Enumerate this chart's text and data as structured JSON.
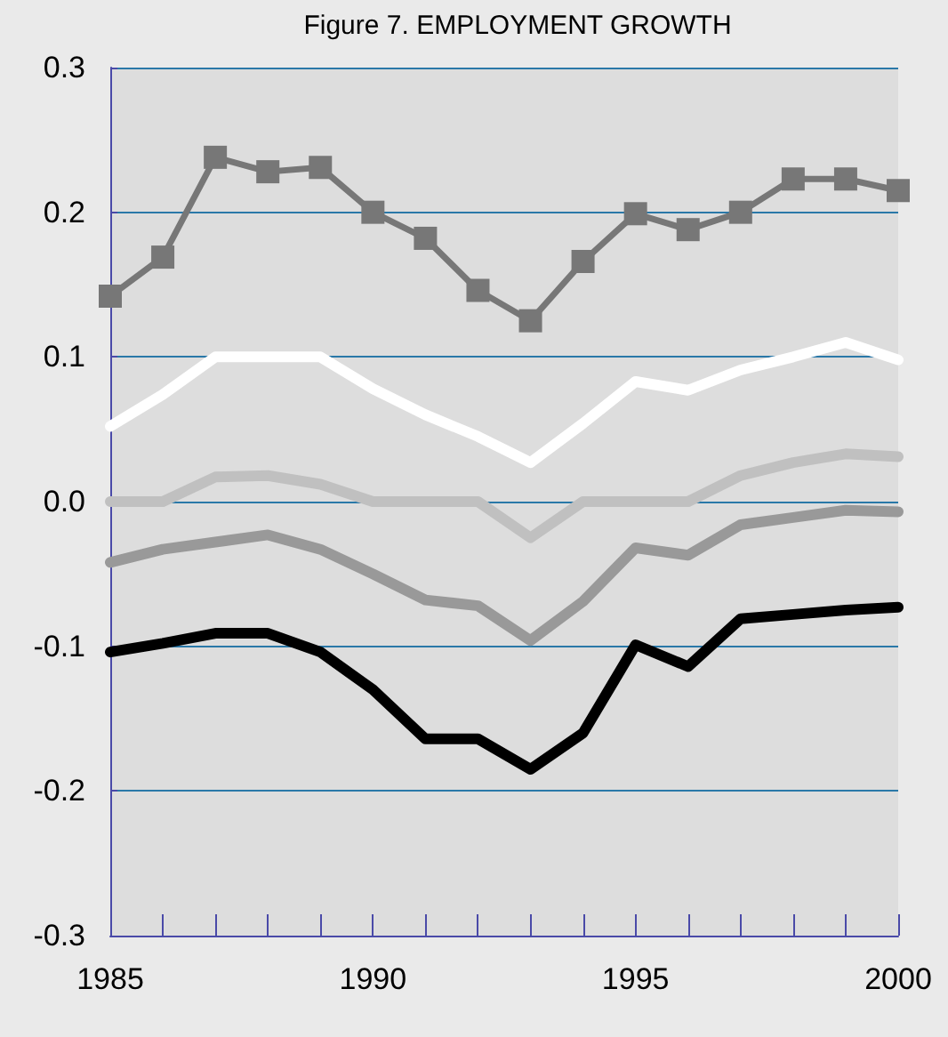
{
  "chart_data": {
    "type": "line",
    "title": "Figure 7. EMPLOYMENT GROWTH",
    "x": [
      1985,
      1986,
      1987,
      1988,
      1989,
      1990,
      1991,
      1992,
      1993,
      1994,
      1995,
      1996,
      1997,
      1998,
      1999,
      2000
    ],
    "series": [
      {
        "color": "#777777",
        "marker": "square",
        "values": [
          0.142,
          0.169,
          0.238,
          0.228,
          0.231,
          0.2,
          0.182,
          0.146,
          0.125,
          0.166,
          0.199,
          0.188,
          0.2,
          0.223,
          0.223,
          0.215
        ]
      },
      {
        "color": "#ffffff",
        "marker": "none",
        "values": [
          0.052,
          0.074,
          0.1,
          0.1,
          0.1,
          0.078,
          0.06,
          0.045,
          0.027,
          0.054,
          0.083,
          0.077,
          0.091,
          0.1,
          0.11,
          0.098
        ]
      },
      {
        "color": "#c0c0c0",
        "marker": "none",
        "values": [
          0,
          0,
          0.017,
          0.018,
          0.012,
          0,
          0,
          0,
          -0.025,
          0,
          0,
          0,
          0.018,
          0.027,
          0.033,
          0.031
        ]
      },
      {
        "color": "#999999",
        "marker": "none",
        "values": [
          -0.042,
          -0.033,
          -0.028,
          -0.023,
          -0.033,
          -0.05,
          -0.068,
          -0.072,
          -0.096,
          -0.069,
          -0.032,
          -0.037,
          -0.016,
          -0.011,
          -0.006,
          -0.007
        ]
      },
      {
        "color": "#000000",
        "marker": "none",
        "values": [
          -0.104,
          -0.098,
          -0.091,
          -0.091,
          -0.104,
          -0.13,
          -0.164,
          -0.164,
          -0.185,
          -0.16,
          -0.099,
          -0.114,
          -0.081,
          -0.078,
          -0.075,
          -0.073
        ]
      }
    ],
    "xlim": [
      1985,
      2000
    ],
    "xticks": [
      1985,
      {
        "value": 1986,
        "label": null
      },
      {
        "value": 1987,
        "label": null
      },
      {
        "value": 1988,
        "label": null
      },
      {
        "value": 1989,
        "label": null
      },
      1990,
      {
        "value": 1991,
        "label": null
      },
      {
        "value": 1992,
        "label": null
      },
      {
        "value": 1993,
        "label": null
      },
      {
        "value": 1994,
        "label": null
      },
      1995,
      {
        "value": 1996,
        "label": null
      },
      {
        "value": 1997,
        "label": null
      },
      {
        "value": 1998,
        "label": null
      },
      {
        "value": 1999,
        "label": null
      },
      2000
    ],
    "ylim": [
      -0.3,
      0.3
    ],
    "yticks": [
      -0.3,
      -0.2,
      -0.1,
      {
        "value": 0,
        "label": "0.0"
      },
      0.1,
      0.2,
      0.3
    ],
    "grid": "y"
  }
}
